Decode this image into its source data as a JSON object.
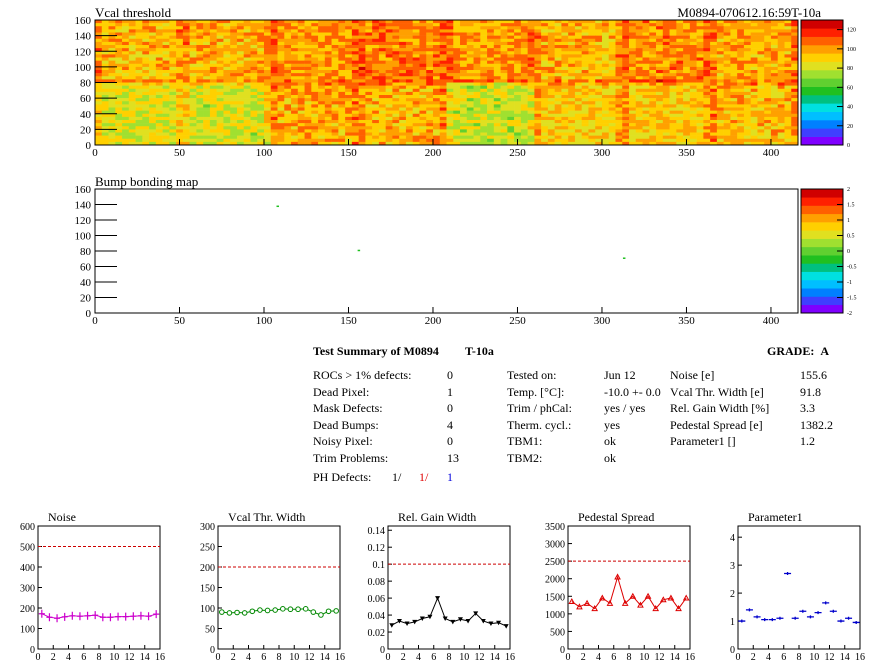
{
  "header": {
    "map1_title": "Vcal threshold",
    "run_id": "M0894-070612.16:59T-10a",
    "map2_title": "Bump bonding map"
  },
  "colors": {
    "palette": [
      "#7f00ff",
      "#3f3fff",
      "#0080ff",
      "#00bfff",
      "#00e0e0",
      "#00c080",
      "#20c020",
      "#60d030",
      "#a0e030",
      "#e0e020",
      "#ffd000",
      "#ffa000",
      "#ff6000",
      "#ff2000",
      "#d00000"
    ],
    "frame": "#000000",
    "ref_line": "#cc0000",
    "noise": "#cc00cc",
    "vcal": "#008800",
    "gain": "#000000",
    "pedestal": "#dd0000",
    "param1": "#0000cc"
  },
  "summary": {
    "title": "Test Summary of M0894",
    "temp_tag": "T-10a",
    "grade_label": "GRADE:",
    "grade": "A",
    "left": [
      {
        "label": "ROCs > 1% defects:",
        "value": "0"
      },
      {
        "label": "Dead Pixel:",
        "value": "1"
      },
      {
        "label": "Mask Defects:",
        "value": "0"
      },
      {
        "label": "Dead Bumps:",
        "value": "4"
      },
      {
        "label": "Noisy Pixel:",
        "value": "0"
      },
      {
        "label": "Trim Problems:",
        "value": "13"
      }
    ],
    "ph_label": "PH Defects:",
    "ph_values": [
      "1/",
      "1/",
      "1"
    ],
    "middle": [
      {
        "label": "Tested on:",
        "value": "Jun 12"
      },
      {
        "label": "Temp. [°C]:",
        "value": "-10.0 +- 0.0"
      },
      {
        "label": "Trim / phCal:",
        "value": "yes / yes"
      },
      {
        "label": "Therm. cycl.:",
        "value": "yes"
      },
      {
        "label": "TBM1:",
        "value": "ok"
      },
      {
        "label": "TBM2:",
        "value": "ok"
      }
    ],
    "right": [
      {
        "label": "Noise [e]",
        "value": "155.6"
      },
      {
        "label": "Vcal Thr. Width [e]",
        "value": "91.8"
      },
      {
        "label": "Rel. Gain Width [%]",
        "value": "3.3"
      },
      {
        "label": "Pedestal Spread [e]",
        "value": "1382.2"
      },
      {
        "label": "Parameter1 []",
        "value": "1.2"
      }
    ]
  },
  "chart_data": [
    {
      "type": "heatmap",
      "title": "Vcal threshold",
      "xlim": [
        0,
        416
      ],
      "ylim": [
        0,
        160
      ],
      "x_ticks": [
        "0",
        "50",
        "100",
        "150",
        "200",
        "250",
        "300",
        "350",
        "400"
      ],
      "y_ticks": [
        "0",
        "20",
        "40",
        "60",
        "80",
        "100",
        "120",
        "140",
        "160"
      ],
      "z_ticks": [
        "0",
        "20",
        "40",
        "60",
        "80",
        "100",
        "120"
      ],
      "zlim": [
        0,
        130
      ],
      "roc_mean": [
        [
          95,
          96,
          100,
          104,
          100,
          95,
          102,
          97
        ],
        [
          83,
          81,
          97,
          95,
          80,
          90,
          92,
          94
        ]
      ]
    },
    {
      "type": "heatmap",
      "title": "Bump bonding map",
      "xlim": [
        0,
        416
      ],
      "ylim": [
        0,
        160
      ],
      "x_ticks": [
        "0",
        "50",
        "100",
        "150",
        "200",
        "250",
        "300",
        "350",
        "400"
      ],
      "y_ticks": [
        "0",
        "20",
        "40",
        "60",
        "80",
        "100",
        "120",
        "140",
        "160"
      ],
      "z_ticks": [
        "-2",
        "-1.5",
        "-1",
        "-0.5",
        "0",
        "0.5",
        "1",
        "1.5",
        "2"
      ],
      "zlim": [
        -2,
        2
      ],
      "points": [
        [
          108,
          138
        ],
        [
          156,
          81
        ],
        [
          313,
          71
        ]
      ]
    },
    {
      "type": "line",
      "title": "Noise",
      "xlim": [
        0,
        16
      ],
      "ylim": [
        0,
        600
      ],
      "y_ticks": [
        "0",
        "100",
        "200",
        "300",
        "400",
        "500",
        "600"
      ],
      "x_ticks": [
        "0",
        "2",
        "4",
        "6",
        "8",
        "10",
        "12",
        "14",
        "16"
      ],
      "ref": 500,
      "values": [
        172,
        155,
        150,
        157,
        162,
        160,
        162,
        165,
        155,
        155,
        158,
        158,
        160,
        162,
        160,
        170
      ]
    },
    {
      "type": "line",
      "title": "Vcal Thr. Width",
      "xlim": [
        0,
        16
      ],
      "ylim": [
        0,
        300
      ],
      "y_ticks": [
        "0",
        "50",
        "100",
        "150",
        "200",
        "250",
        "300"
      ],
      "x_ticks": [
        "0",
        "2",
        "4",
        "6",
        "8",
        "10",
        "12",
        "14",
        "16"
      ],
      "ref": 200,
      "values": [
        90,
        88,
        89,
        88,
        92,
        95,
        94,
        95,
        98,
        97,
        97,
        98,
        90,
        83,
        92,
        93
      ]
    },
    {
      "type": "line",
      "title": "Rel. Gain Width",
      "xlim": [
        0,
        16
      ],
      "ylim": [
        0,
        0.145
      ],
      "y_ticks": [
        "0",
        "0.02",
        "0.04",
        "0.06",
        "0.08",
        "0.1",
        "0.12",
        "0.14"
      ],
      "x_ticks": [
        "0",
        "2",
        "4",
        "6",
        "8",
        "10",
        "12",
        "14",
        "16"
      ],
      "ref": 0.1,
      "values": [
        0.028,
        0.033,
        0.03,
        0.032,
        0.036,
        0.038,
        0.06,
        0.036,
        0.032,
        0.035,
        0.033,
        0.042,
        0.033,
        0.03,
        0.031,
        0.027
      ]
    },
    {
      "type": "line",
      "title": "Pedestal Spread",
      "xlim": [
        0,
        16
      ],
      "ylim": [
        0,
        3500
      ],
      "y_ticks": [
        "0",
        "500",
        "1000",
        "1500",
        "2000",
        "2500",
        "3000",
        "3500"
      ],
      "x_ticks": [
        "0",
        "2",
        "4",
        "6",
        "8",
        "10",
        "12",
        "14",
        "16"
      ],
      "ref": 2500,
      "values": [
        1350,
        1200,
        1300,
        1150,
        1450,
        1300,
        2050,
        1300,
        1500,
        1250,
        1500,
        1150,
        1400,
        1450,
        1150,
        1450
      ]
    },
    {
      "type": "scatter",
      "title": "Parameter1",
      "xlim": [
        0,
        16
      ],
      "ylim": [
        0,
        4.4
      ],
      "y_ticks": [
        "0",
        "1",
        "2",
        "3",
        "4"
      ],
      "x_ticks": [
        "0",
        "2",
        "4",
        "6",
        "8",
        "10",
        "12",
        "14",
        "16"
      ],
      "values": [
        1.0,
        1.4,
        1.15,
        1.05,
        1.05,
        1.1,
        2.7,
        1.1,
        1.35,
        1.15,
        1.3,
        1.65,
        1.35,
        1.0,
        1.1,
        0.95
      ]
    }
  ]
}
